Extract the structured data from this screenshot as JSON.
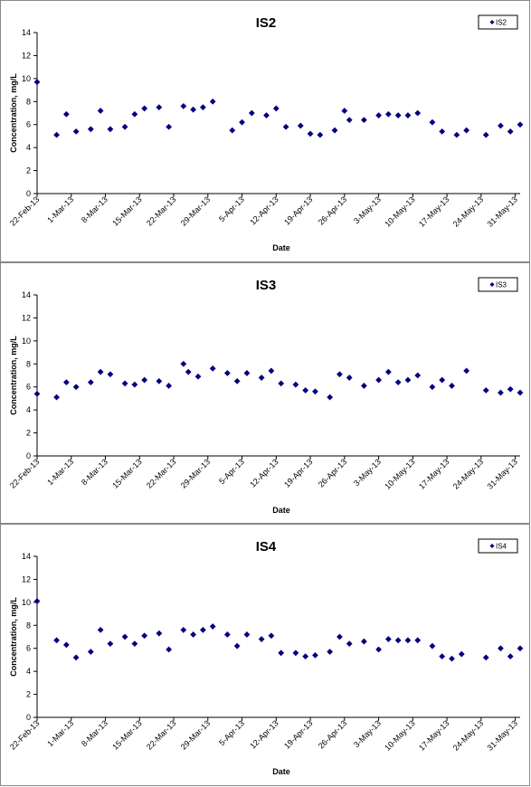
{
  "chart_data": [
    {
      "type": "scatter",
      "title": "IS2",
      "xlabel": "Date",
      "ylabel": "Concentration, mg/L",
      "ylim": [
        0,
        14
      ],
      "y_ticks": [
        "0",
        "2",
        "4",
        "6",
        "8",
        "10",
        "12",
        "14"
      ],
      "x_tick_labels": [
        "22-Feb-13",
        "1-Mar-13",
        "8-Mar-13",
        "15-Mar-13",
        "22-Mar-13",
        "29-Mar-13",
        "5-Apr-13",
        "12-Apr-13",
        "19-Apr-13",
        "26-Apr-13",
        "3-May-13",
        "10-May-13",
        "17-May-13",
        "24-May-13",
        "31-May-13"
      ],
      "xlim": [
        "2013-02-22",
        "2013-06-01"
      ],
      "grid": false,
      "legend_position": "top-right",
      "marker_color": "#000080",
      "series": [
        {
          "name": "IS2",
          "points": [
            {
              "x": "2013-02-22",
              "y": 9.7
            },
            {
              "x": "2013-02-26",
              "y": 5.1
            },
            {
              "x": "2013-02-28",
              "y": 6.9
            },
            {
              "x": "2013-03-02",
              "y": 5.4
            },
            {
              "x": "2013-03-05",
              "y": 5.6
            },
            {
              "x": "2013-03-07",
              "y": 7.2
            },
            {
              "x": "2013-03-09",
              "y": 5.6
            },
            {
              "x": "2013-03-12",
              "y": 5.8
            },
            {
              "x": "2013-03-14",
              "y": 6.9
            },
            {
              "x": "2013-03-16",
              "y": 7.4
            },
            {
              "x": "2013-03-19",
              "y": 7.5
            },
            {
              "x": "2013-03-21",
              "y": 5.8
            },
            {
              "x": "2013-03-24",
              "y": 7.6
            },
            {
              "x": "2013-03-26",
              "y": 7.3
            },
            {
              "x": "2013-03-28",
              "y": 7.5
            },
            {
              "x": "2013-03-30",
              "y": 8.0
            },
            {
              "x": "2013-04-03",
              "y": 5.5
            },
            {
              "x": "2013-04-05",
              "y": 6.2
            },
            {
              "x": "2013-04-07",
              "y": 7.0
            },
            {
              "x": "2013-04-10",
              "y": 6.8
            },
            {
              "x": "2013-04-12",
              "y": 7.4
            },
            {
              "x": "2013-04-14",
              "y": 5.8
            },
            {
              "x": "2013-04-17",
              "y": 5.9
            },
            {
              "x": "2013-04-19",
              "y": 5.2
            },
            {
              "x": "2013-04-21",
              "y": 5.1
            },
            {
              "x": "2013-04-24",
              "y": 5.5
            },
            {
              "x": "2013-04-26",
              "y": 7.2
            },
            {
              "x": "2013-04-27",
              "y": 6.4
            },
            {
              "x": "2013-04-30",
              "y": 6.4
            },
            {
              "x": "2013-05-03",
              "y": 6.8
            },
            {
              "x": "2013-05-05",
              "y": 6.9
            },
            {
              "x": "2013-05-07",
              "y": 6.8
            },
            {
              "x": "2013-05-09",
              "y": 6.8
            },
            {
              "x": "2013-05-11",
              "y": 7.0
            },
            {
              "x": "2013-05-14",
              "y": 6.2
            },
            {
              "x": "2013-05-16",
              "y": 5.4
            },
            {
              "x": "2013-05-19",
              "y": 5.1
            },
            {
              "x": "2013-05-21",
              "y": 5.5
            },
            {
              "x": "2013-05-25",
              "y": 5.1
            },
            {
              "x": "2013-05-28",
              "y": 5.9
            },
            {
              "x": "2013-05-30",
              "y": 5.4
            },
            {
              "x": "2013-06-01",
              "y": 6.0
            }
          ]
        }
      ]
    },
    {
      "type": "scatter",
      "title": "IS3",
      "xlabel": "Date",
      "ylabel": "Concentration, mg/L",
      "ylim": [
        0,
        14
      ],
      "y_ticks": [
        "0",
        "2",
        "4",
        "6",
        "8",
        "10",
        "12",
        "14"
      ],
      "x_tick_labels": [
        "22-Feb-13",
        "1-Mar-13",
        "8-Mar-13",
        "15-Mar-13",
        "22-Mar-13",
        "29-Mar-13",
        "5-Apr-13",
        "12-Apr-13",
        "19-Apr-13",
        "26-Apr-13",
        "3-May-13",
        "10-May-13",
        "17-May-13",
        "24-May-13",
        "31-May-13"
      ],
      "xlim": [
        "2013-02-22",
        "2013-06-01"
      ],
      "grid": false,
      "legend_position": "top-right",
      "marker_color": "#000080",
      "series": [
        {
          "name": "IS3",
          "points": [
            {
              "x": "2013-02-22",
              "y": 5.4
            },
            {
              "x": "2013-02-26",
              "y": 5.1
            },
            {
              "x": "2013-02-28",
              "y": 6.4
            },
            {
              "x": "2013-03-02",
              "y": 6.0
            },
            {
              "x": "2013-03-05",
              "y": 6.4
            },
            {
              "x": "2013-03-07",
              "y": 7.3
            },
            {
              "x": "2013-03-09",
              "y": 7.1
            },
            {
              "x": "2013-03-12",
              "y": 6.3
            },
            {
              "x": "2013-03-14",
              "y": 6.2
            },
            {
              "x": "2013-03-16",
              "y": 6.6
            },
            {
              "x": "2013-03-19",
              "y": 6.5
            },
            {
              "x": "2013-03-21",
              "y": 6.1
            },
            {
              "x": "2013-03-24",
              "y": 8.0
            },
            {
              "x": "2013-03-25",
              "y": 7.3
            },
            {
              "x": "2013-03-27",
              "y": 6.9
            },
            {
              "x": "2013-03-30",
              "y": 7.6
            },
            {
              "x": "2013-04-02",
              "y": 7.2
            },
            {
              "x": "2013-04-04",
              "y": 6.5
            },
            {
              "x": "2013-04-06",
              "y": 7.2
            },
            {
              "x": "2013-04-09",
              "y": 6.8
            },
            {
              "x": "2013-04-11",
              "y": 7.4
            },
            {
              "x": "2013-04-13",
              "y": 6.3
            },
            {
              "x": "2013-04-16",
              "y": 6.2
            },
            {
              "x": "2013-04-18",
              "y": 5.7
            },
            {
              "x": "2013-04-20",
              "y": 5.6
            },
            {
              "x": "2013-04-23",
              "y": 5.1
            },
            {
              "x": "2013-04-25",
              "y": 7.1
            },
            {
              "x": "2013-04-27",
              "y": 6.8
            },
            {
              "x": "2013-04-30",
              "y": 6.1
            },
            {
              "x": "2013-05-03",
              "y": 6.6
            },
            {
              "x": "2013-05-05",
              "y": 7.3
            },
            {
              "x": "2013-05-07",
              "y": 6.4
            },
            {
              "x": "2013-05-09",
              "y": 6.6
            },
            {
              "x": "2013-05-11",
              "y": 7.0
            },
            {
              "x": "2013-05-14",
              "y": 6.0
            },
            {
              "x": "2013-05-16",
              "y": 6.6
            },
            {
              "x": "2013-05-18",
              "y": 6.1
            },
            {
              "x": "2013-05-21",
              "y": 7.4
            },
            {
              "x": "2013-05-25",
              "y": 5.7
            },
            {
              "x": "2013-05-28",
              "y": 5.5
            },
            {
              "x": "2013-05-30",
              "y": 5.8
            },
            {
              "x": "2013-06-01",
              "y": 5.5
            }
          ]
        }
      ]
    },
    {
      "type": "scatter",
      "title": "IS4",
      "xlabel": "Date",
      "ylabel": "Concentration, mg/L",
      "ylim": [
        0,
        14
      ],
      "y_ticks": [
        "0",
        "2",
        "4",
        "6",
        "8",
        "10",
        "12",
        "14"
      ],
      "x_tick_labels": [
        "22-Feb-13",
        "1-Mar-13",
        "8-Mar-13",
        "15-Mar-13",
        "22-Mar-13",
        "29-Mar-13",
        "5-Apr-13",
        "12-Apr-13",
        "19-Apr-13",
        "26-Apr-13",
        "3-May-13",
        "10-May-13",
        "17-May-13",
        "24-May-13",
        "31-May-13"
      ],
      "xlim": [
        "2013-02-22",
        "2013-06-01"
      ],
      "grid": false,
      "legend_position": "top-right",
      "marker_color": "#000080",
      "series": [
        {
          "name": "IS4",
          "points": [
            {
              "x": "2013-02-22",
              "y": 10.1
            },
            {
              "x": "2013-02-26",
              "y": 6.7
            },
            {
              "x": "2013-02-28",
              "y": 6.3
            },
            {
              "x": "2013-03-02",
              "y": 5.2
            },
            {
              "x": "2013-03-05",
              "y": 5.7
            },
            {
              "x": "2013-03-07",
              "y": 7.6
            },
            {
              "x": "2013-03-09",
              "y": 6.4
            },
            {
              "x": "2013-03-12",
              "y": 7.0
            },
            {
              "x": "2013-03-14",
              "y": 6.4
            },
            {
              "x": "2013-03-16",
              "y": 7.1
            },
            {
              "x": "2013-03-19",
              "y": 7.3
            },
            {
              "x": "2013-03-21",
              "y": 5.9
            },
            {
              "x": "2013-03-24",
              "y": 7.6
            },
            {
              "x": "2013-03-26",
              "y": 7.2
            },
            {
              "x": "2013-03-28",
              "y": 7.6
            },
            {
              "x": "2013-03-30",
              "y": 7.9
            },
            {
              "x": "2013-04-02",
              "y": 7.2
            },
            {
              "x": "2013-04-04",
              "y": 6.2
            },
            {
              "x": "2013-04-06",
              "y": 7.2
            },
            {
              "x": "2013-04-09",
              "y": 6.8
            },
            {
              "x": "2013-04-11",
              "y": 7.1
            },
            {
              "x": "2013-04-13",
              "y": 5.6
            },
            {
              "x": "2013-04-16",
              "y": 5.6
            },
            {
              "x": "2013-04-18",
              "y": 5.3
            },
            {
              "x": "2013-04-20",
              "y": 5.4
            },
            {
              "x": "2013-04-23",
              "y": 5.7
            },
            {
              "x": "2013-04-25",
              "y": 7.0
            },
            {
              "x": "2013-04-27",
              "y": 6.4
            },
            {
              "x": "2013-04-30",
              "y": 6.6
            },
            {
              "x": "2013-05-03",
              "y": 5.9
            },
            {
              "x": "2013-05-05",
              "y": 6.8
            },
            {
              "x": "2013-05-07",
              "y": 6.7
            },
            {
              "x": "2013-05-09",
              "y": 6.7
            },
            {
              "x": "2013-05-11",
              "y": 6.7
            },
            {
              "x": "2013-05-14",
              "y": 6.2
            },
            {
              "x": "2013-05-16",
              "y": 5.3
            },
            {
              "x": "2013-05-18",
              "y": 5.1
            },
            {
              "x": "2013-05-20",
              "y": 5.5
            },
            {
              "x": "2013-05-25",
              "y": 5.2
            },
            {
              "x": "2013-05-28",
              "y": 6.0
            },
            {
              "x": "2013-05-30",
              "y": 5.3
            },
            {
              "x": "2013-06-01",
              "y": 6.0
            }
          ]
        }
      ]
    }
  ]
}
